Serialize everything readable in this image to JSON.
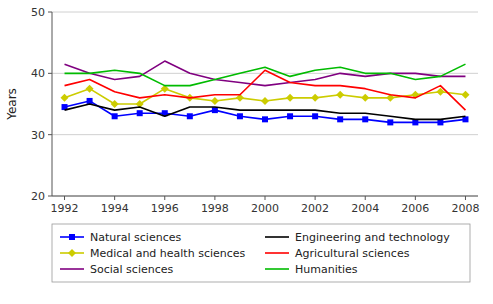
{
  "chart_data": {
    "type": "line",
    "x": [
      1992,
      1993,
      1994,
      1995,
      1996,
      1997,
      1998,
      1999,
      2000,
      2001,
      2002,
      2003,
      2004,
      2005,
      2006,
      2007,
      2008
    ],
    "series": [
      {
        "name": "Natural sciences",
        "color": "#0000ff",
        "marker": "square",
        "values": [
          34.5,
          35.5,
          33,
          33.5,
          33.5,
          33,
          34,
          33,
          32.5,
          33,
          33,
          32.5,
          32.5,
          32,
          32,
          32,
          32.5
        ]
      },
      {
        "name": "Medical and health sciences",
        "color": "#cccc00",
        "marker": "diamond",
        "values": [
          36,
          37.5,
          35,
          35,
          37.5,
          36,
          35.5,
          36,
          35.5,
          36,
          36,
          36.5,
          36,
          36,
          36.5,
          37,
          36.5
        ]
      },
      {
        "name": "Social sciences",
        "color": "#800080",
        "marker": "none",
        "values": [
          41.5,
          40,
          39,
          39.5,
          42,
          40,
          39,
          38.5,
          38,
          38.5,
          39,
          40,
          39.5,
          40,
          40,
          39.5,
          39.5
        ]
      },
      {
        "name": "Engineering and technology",
        "color": "#000000",
        "marker": "none",
        "values": [
          34,
          35,
          34,
          34.5,
          33,
          34.5,
          34.5,
          34,
          34,
          34,
          34,
          33.5,
          33.5,
          33,
          32.5,
          32.5,
          33
        ]
      },
      {
        "name": "Agricultural sciences",
        "color": "#ff0000",
        "marker": "none",
        "values": [
          38,
          39,
          37,
          36,
          36.5,
          36,
          36.5,
          36.5,
          40.5,
          38.5,
          38,
          38,
          37.5,
          36.5,
          36,
          38,
          34
        ]
      },
      {
        "name": "Humanities",
        "color": "#00bb00",
        "marker": "none",
        "values": [
          40,
          40,
          40.5,
          40,
          38,
          38,
          39,
          40,
          41,
          39.5,
          40.5,
          41,
          40,
          40,
          39,
          39.5,
          41.5
        ]
      }
    ],
    "y_label": "Years",
    "ylim": [
      20,
      50
    ],
    "yticks": [
      20,
      30,
      40,
      50
    ],
    "xlim": [
      1991.5,
      2008.5
    ],
    "xticks": [
      1992,
      1994,
      1996,
      1998,
      2000,
      2002,
      2004,
      2006,
      2008
    ],
    "grid": true,
    "legend": "bottom"
  }
}
